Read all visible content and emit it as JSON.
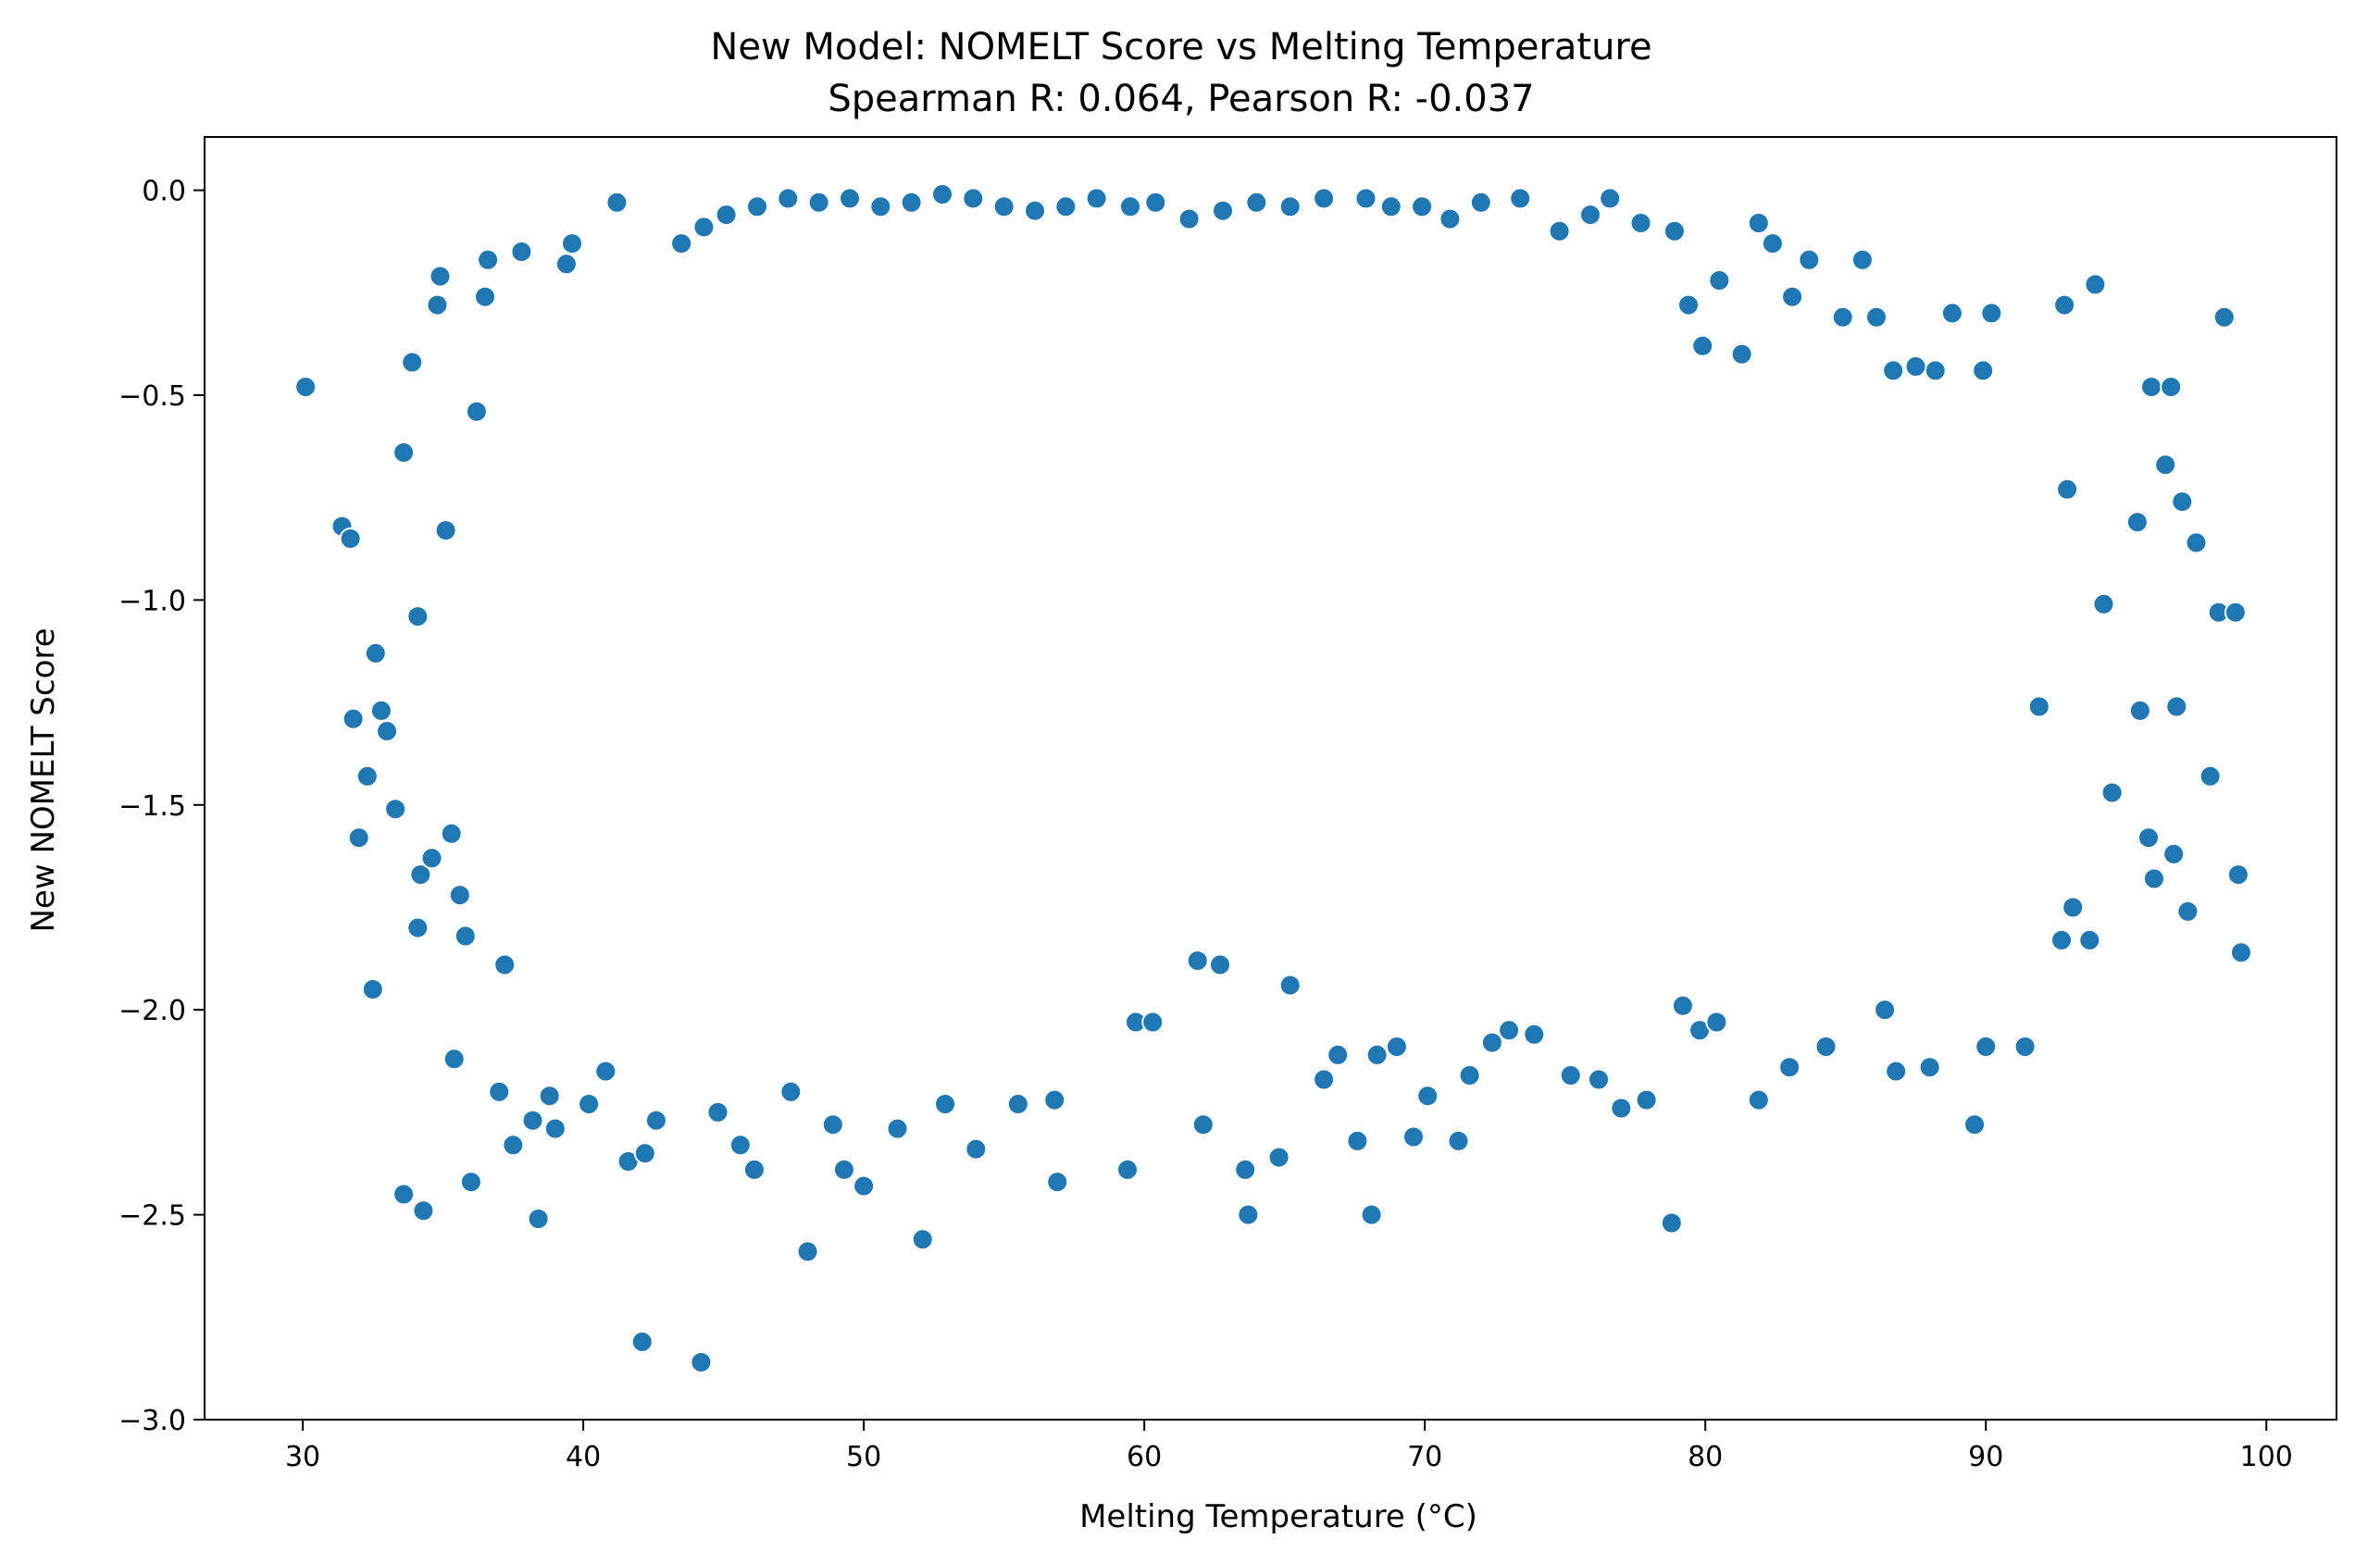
{
  "chart_data": {
    "type": "scatter",
    "title": "New Model: NOMELT Score vs Melting Temperature",
    "subtitle": "Spearman R: 0.064, Pearson R: -0.037",
    "xlabel": "Melting Temperature (°C)",
    "ylabel": "New NOMELT Score",
    "xlim": [
      26.5,
      102.5
    ],
    "ylim": [
      -3.0,
      0.13
    ],
    "xticks": [
      30,
      40,
      50,
      60,
      70,
      80,
      90,
      100
    ],
    "xtick_labels": [
      "30",
      "40",
      "50",
      "60",
      "70",
      "80",
      "90",
      "100"
    ],
    "yticks": [
      0.0,
      -0.5,
      -1.0,
      -1.5,
      -2.0,
      -2.5,
      -3.0
    ],
    "ytick_labels": [
      "0.0",
      "−0.5",
      "−1.0",
      "−1.5",
      "−2.0",
      "−2.5",
      "−3.0"
    ],
    "grid": false,
    "legend": "none",
    "marker_color": "#1f77b4",
    "points": [
      [
        30.1,
        -0.48
      ],
      [
        31.4,
        -0.82
      ],
      [
        31.7,
        -0.85
      ],
      [
        31.8,
        -1.29
      ],
      [
        32.0,
        -1.58
      ],
      [
        32.3,
        -1.43
      ],
      [
        32.6,
        -1.13
      ],
      [
        32.5,
        -1.95
      ],
      [
        32.8,
        -1.27
      ],
      [
        33.0,
        -1.32
      ],
      [
        33.3,
        -1.51
      ],
      [
        33.6,
        -0.64
      ],
      [
        33.9,
        -0.42
      ],
      [
        34.1,
        -1.04
      ],
      [
        34.2,
        -1.67
      ],
      [
        34.1,
        -1.8
      ],
      [
        34.3,
        -2.49
      ],
      [
        33.6,
        -2.45
      ],
      [
        34.6,
        -1.63
      ],
      [
        34.8,
        -0.28
      ],
      [
        34.9,
        -0.21
      ],
      [
        35.1,
        -0.83
      ],
      [
        35.3,
        -1.57
      ],
      [
        35.4,
        -2.12
      ],
      [
        35.6,
        -1.72
      ],
      [
        35.8,
        -1.82
      ],
      [
        36.0,
        -2.42
      ],
      [
        36.2,
        -0.54
      ],
      [
        36.5,
        -0.26
      ],
      [
        36.6,
        -0.17
      ],
      [
        37.0,
        -2.2
      ],
      [
        37.2,
        -1.89
      ],
      [
        37.5,
        -2.33
      ],
      [
        37.8,
        -0.15
      ],
      [
        38.2,
        -2.27
      ],
      [
        38.4,
        -2.51
      ],
      [
        38.8,
        -2.21
      ],
      [
        39.0,
        -2.29
      ],
      [
        39.4,
        -0.18
      ],
      [
        39.6,
        -0.13
      ],
      [
        40.2,
        -2.23
      ],
      [
        40.8,
        -2.15
      ],
      [
        41.2,
        -0.03
      ],
      [
        41.6,
        -2.37
      ],
      [
        42.1,
        -2.81
      ],
      [
        42.2,
        -2.35
      ],
      [
        42.6,
        -2.27
      ],
      [
        44.2,
        -2.86
      ],
      [
        44.8,
        -2.25
      ],
      [
        45.6,
        -2.33
      ],
      [
        46.1,
        -2.39
      ],
      [
        47.4,
        -2.2
      ],
      [
        48.0,
        -2.59
      ],
      [
        48.9,
        -2.28
      ],
      [
        49.3,
        -2.39
      ],
      [
        50.0,
        -2.43
      ],
      [
        51.2,
        -2.29
      ],
      [
        52.1,
        -2.56
      ],
      [
        52.9,
        -2.23
      ],
      [
        54.0,
        -2.34
      ],
      [
        55.5,
        -2.23
      ],
      [
        56.9,
        -2.42
      ],
      [
        56.8,
        -2.22
      ],
      [
        59.4,
        -2.39
      ],
      [
        59.7,
        -2.03
      ],
      [
        60.3,
        -2.03
      ],
      [
        61.9,
        -1.88
      ],
      [
        62.1,
        -2.28
      ],
      [
        62.7,
        -1.89
      ],
      [
        63.6,
        -2.39
      ],
      [
        63.7,
        -2.5
      ],
      [
        64.8,
        -2.36
      ],
      [
        65.2,
        -1.94
      ],
      [
        66.4,
        -2.17
      ],
      [
        66.9,
        -2.11
      ],
      [
        67.6,
        -2.32
      ],
      [
        68.1,
        -2.5
      ],
      [
        68.3,
        -2.11
      ],
      [
        69.0,
        -2.09
      ],
      [
        69.6,
        -2.31
      ],
      [
        70.1,
        -2.21
      ],
      [
        71.2,
        -2.32
      ],
      [
        71.6,
        -2.16
      ],
      [
        72.4,
        -2.08
      ],
      [
        73.0,
        -2.05
      ],
      [
        73.9,
        -2.06
      ],
      [
        75.2,
        -2.16
      ],
      [
        76.2,
        -2.17
      ],
      [
        77.0,
        -2.24
      ],
      [
        77.9,
        -2.22
      ],
      [
        78.8,
        -2.52
      ],
      [
        79.2,
        -1.99
      ],
      [
        79.8,
        -2.05
      ],
      [
        80.4,
        -2.03
      ],
      [
        81.9,
        -2.22
      ],
      [
        83.0,
        -2.14
      ],
      [
        84.3,
        -2.09
      ],
      [
        86.4,
        -2.0
      ],
      [
        86.8,
        -2.15
      ],
      [
        88.0,
        -2.14
      ],
      [
        89.6,
        -2.28
      ],
      [
        90.0,
        -2.09
      ],
      [
        91.4,
        -2.09
      ],
      [
        92.7,
        -1.83
      ],
      [
        93.1,
        -1.75
      ],
      [
        93.7,
        -1.83
      ],
      [
        94.5,
        -1.47
      ],
      [
        95.4,
        -0.81
      ],
      [
        95.9,
        -0.48
      ],
      [
        96.0,
        -1.68
      ],
      [
        96.6,
        -0.48
      ],
      [
        96.8,
        -1.26
      ],
      [
        97.2,
        -1.76
      ],
      [
        97.5,
        -0.86
      ],
      [
        98.0,
        -1.43
      ],
      [
        98.3,
        -1.03
      ],
      [
        98.5,
        -0.31
      ],
      [
        98.9,
        -1.03
      ],
      [
        99.0,
        -1.67
      ],
      [
        99.1,
        -1.86
      ],
      [
        96.4,
        -0.67
      ],
      [
        96.7,
        -1.62
      ],
      [
        97.0,
        -0.76
      ],
      [
        95.8,
        -1.58
      ],
      [
        95.5,
        -1.27
      ],
      [
        94.2,
        -1.01
      ],
      [
        93.9,
        -0.23
      ],
      [
        92.8,
        -0.28
      ],
      [
        92.9,
        -0.73
      ],
      [
        91.9,
        -1.26
      ],
      [
        90.2,
        -0.3
      ],
      [
        89.9,
        -0.44
      ],
      [
        88.8,
        -0.3
      ],
      [
        88.2,
        -0.44
      ],
      [
        87.5,
        -0.43
      ],
      [
        86.7,
        -0.44
      ],
      [
        86.1,
        -0.31
      ],
      [
        85.6,
        -0.17
      ],
      [
        84.9,
        -0.31
      ],
      [
        83.7,
        -0.17
      ],
      [
        83.1,
        -0.26
      ],
      [
        82.4,
        -0.13
      ],
      [
        81.9,
        -0.08
      ],
      [
        81.3,
        -0.4
      ],
      [
        80.5,
        -0.22
      ],
      [
        79.9,
        -0.38
      ],
      [
        79.4,
        -0.28
      ],
      [
        78.9,
        -0.1
      ],
      [
        77.7,
        -0.08
      ],
      [
        76.6,
        -0.02
      ],
      [
        75.9,
        -0.06
      ],
      [
        74.8,
        -0.1
      ],
      [
        73.4,
        -0.02
      ],
      [
        72.0,
        -0.03
      ],
      [
        70.9,
        -0.07
      ],
      [
        69.9,
        -0.04
      ],
      [
        68.8,
        -0.04
      ],
      [
        67.9,
        -0.02
      ],
      [
        66.4,
        -0.02
      ],
      [
        65.2,
        -0.04
      ],
      [
        64.0,
        -0.03
      ],
      [
        62.8,
        -0.05
      ],
      [
        61.6,
        -0.07
      ],
      [
        60.4,
        -0.03
      ],
      [
        59.5,
        -0.04
      ],
      [
        58.3,
        -0.02
      ],
      [
        57.2,
        -0.04
      ],
      [
        56.1,
        -0.05
      ],
      [
        55.0,
        -0.04
      ],
      [
        53.9,
        -0.02
      ],
      [
        52.8,
        -0.01
      ],
      [
        51.7,
        -0.03
      ],
      [
        50.6,
        -0.04
      ],
      [
        49.5,
        -0.02
      ],
      [
        48.4,
        -0.03
      ],
      [
        47.3,
        -0.02
      ],
      [
        46.2,
        -0.04
      ],
      [
        45.1,
        -0.06
      ],
      [
        44.3,
        -0.09
      ],
      [
        43.5,
        -0.13
      ]
    ]
  }
}
